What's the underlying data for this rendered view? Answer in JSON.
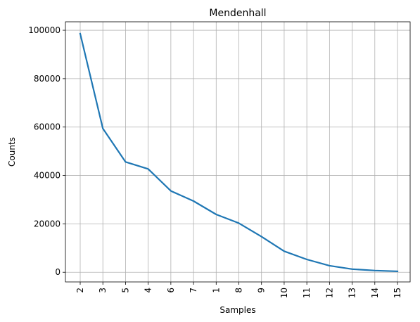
{
  "chart_data": {
    "type": "line",
    "title": "Mendenhall",
    "xlabel": "Samples",
    "ylabel": "Counts",
    "categories": [
      "2",
      "3",
      "5",
      "4",
      "6",
      "7",
      "1",
      "8",
      "9",
      "10",
      "11",
      "12",
      "13",
      "14",
      "15"
    ],
    "series": [
      {
        "values": [
          98600,
          59400,
          45600,
          42700,
          33600,
          29400,
          23900,
          20300,
          14700,
          8700,
          5300,
          2700,
          1300,
          700,
          400
        ],
        "color": "#1f77b4"
      }
    ],
    "yticks": [
      "0",
      "20000",
      "40000",
      "60000",
      "80000",
      "100000"
    ],
    "ylim": [
      -4000,
      103500
    ],
    "grid": true
  }
}
